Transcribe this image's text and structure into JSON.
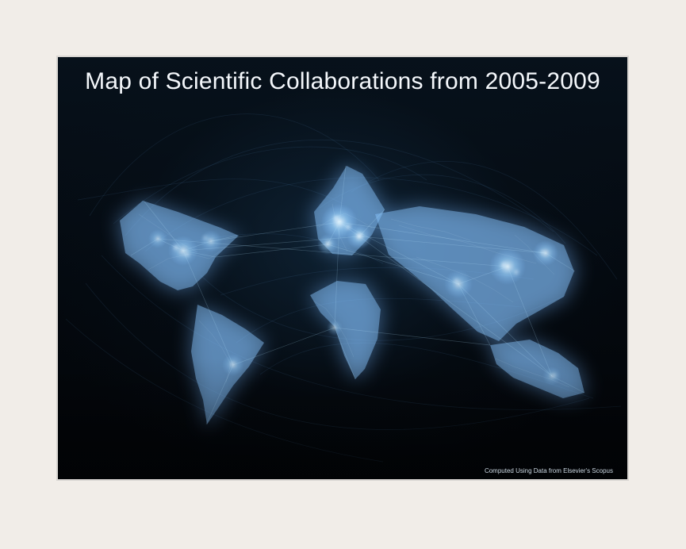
{
  "map": {
    "title": "Map of Scientific Collaborations from 2005-2009",
    "credit": "Computed Using Data from Elsevier's Scopus"
  },
  "colors": {
    "mat_background": "#f1ede8",
    "frame_border": "#d9d6d2",
    "map_background": "#04090f",
    "network_glow": "#78b7ff",
    "hotspot": "#d8f1ff",
    "title_text": "#f4f7fb",
    "credit_text": "#cbd7e2"
  }
}
